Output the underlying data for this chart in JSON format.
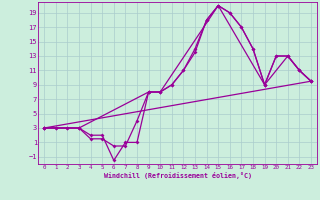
{
  "xlabel": "Windchill (Refroidissement éolien,°C)",
  "bg_color": "#cceedd",
  "grid_color": "#aacccc",
  "line_color": "#990099",
  "markersize": 2.0,
  "linewidth": 0.9,
  "xlim": [
    -0.5,
    23.5
  ],
  "ylim": [
    -2.0,
    20.5
  ],
  "xticks": [
    0,
    1,
    2,
    3,
    4,
    5,
    6,
    7,
    8,
    9,
    10,
    11,
    12,
    13,
    14,
    15,
    16,
    17,
    18,
    19,
    20,
    21,
    22,
    23
  ],
  "yticks": [
    -1,
    1,
    3,
    5,
    7,
    9,
    11,
    13,
    15,
    17,
    19
  ],
  "line1_x": [
    0,
    1,
    2,
    3,
    4,
    5,
    6,
    7,
    8,
    9,
    10,
    11,
    12,
    13,
    14,
    15,
    16,
    17,
    18,
    19,
    20,
    21,
    22,
    23
  ],
  "line1_y": [
    3,
    3,
    3,
    3,
    2,
    2,
    -1.5,
    1,
    1,
    8,
    8,
    9,
    11,
    14,
    18,
    20,
    19,
    17,
    14,
    9,
    13,
    13,
    11,
    9.5
  ],
  "line2_x": [
    0,
    1,
    2,
    3,
    4,
    5,
    6,
    7,
    8,
    9,
    10,
    11,
    12,
    13,
    14,
    15,
    16,
    17,
    18,
    19,
    20,
    21,
    22,
    23
  ],
  "line2_y": [
    3,
    3,
    3,
    3,
    1.5,
    1.5,
    0.5,
    0.5,
    4,
    8,
    8,
    9,
    11,
    13.5,
    18,
    20,
    19,
    17,
    14,
    9,
    13,
    13,
    11,
    9.5
  ],
  "line3_x": [
    0,
    3,
    9,
    10,
    15,
    19,
    21,
    22,
    23
  ],
  "line3_y": [
    3,
    3,
    8,
    8,
    20,
    9,
    13,
    11,
    9.5
  ],
  "line4_x": [
    0,
    23
  ],
  "line4_y": [
    3,
    9.5
  ]
}
